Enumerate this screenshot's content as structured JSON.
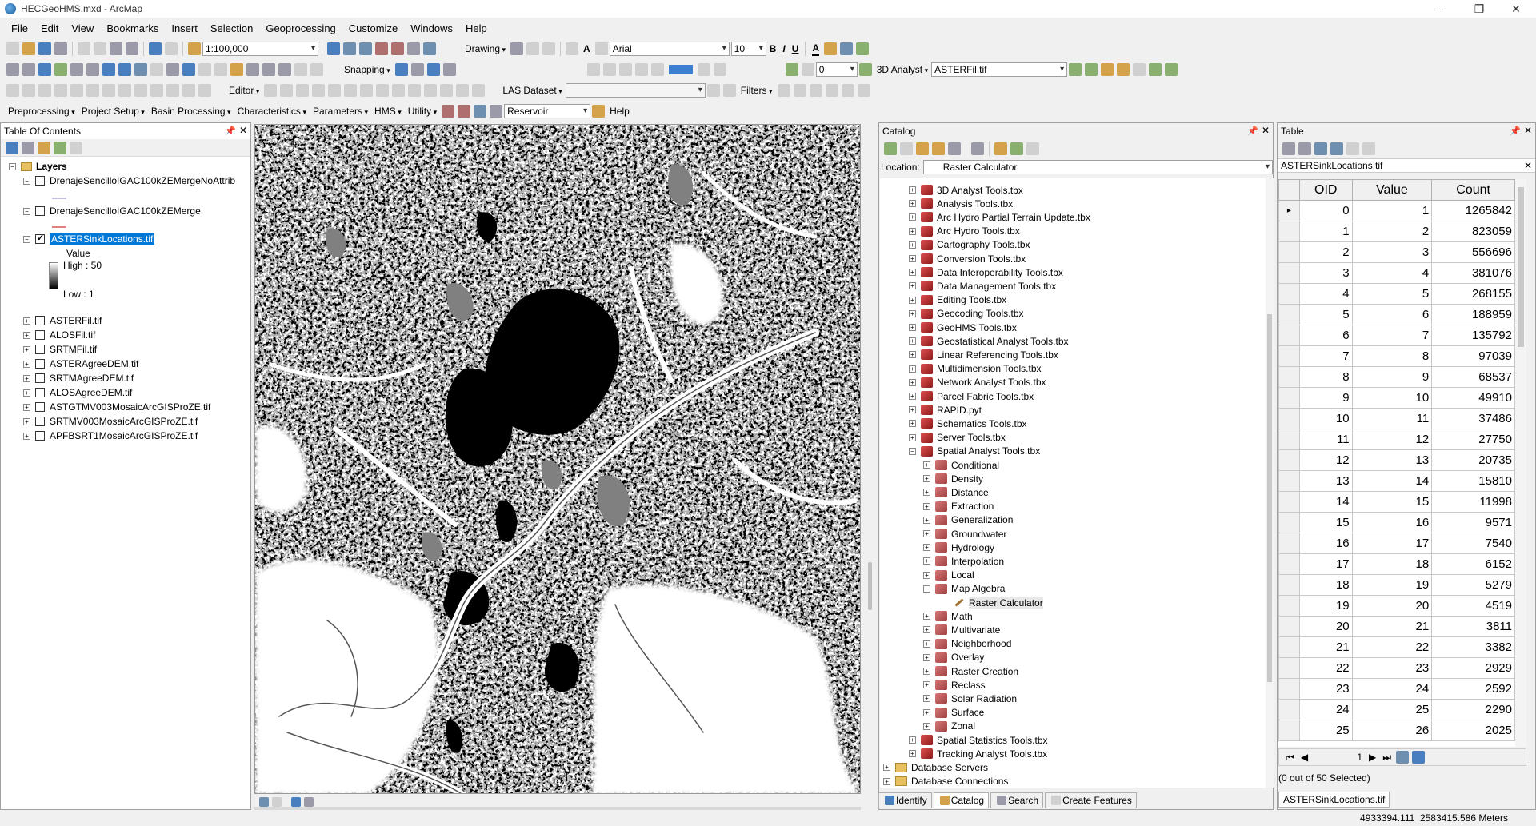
{
  "window": {
    "title": "HECGeoHMS.mxd - ArcMap"
  },
  "menu": [
    "File",
    "Edit",
    "View",
    "Bookmarks",
    "Insert",
    "Selection",
    "Geoprocessing",
    "Customize",
    "Windows",
    "Help"
  ],
  "toolbar": {
    "scale": "1:100,000",
    "drawing": "Drawing",
    "font": "Arial",
    "font_size": "10",
    "bold": "B",
    "italic": "I",
    "underline": "U",
    "snapping": "Snapping",
    "analyst3d": "3D Analyst",
    "layer": "ASTERFil.tif",
    "editor": "Editor",
    "las": "LAS Dataset",
    "filters": "Filters",
    "preprocessing": "Preprocessing",
    "project_setup": "Project Setup",
    "basin_processing": "Basin Processing",
    "characteristics": "Characteristics",
    "parameters": "Parameters",
    "hms": "HMS",
    "utility": "Utility",
    "reservoir": "Reservoir",
    "help": "Help",
    "georef_value": "0"
  },
  "toc": {
    "title": "Table Of Contents",
    "layers_label": "Layers",
    "layer1": "DrenajeSencilloIGAC100kZEMergeNoAttrib",
    "layer2": "DrenajeSencilloIGAC100kZEMerge",
    "layer3": "ASTERSinkLocations.tif",
    "legend_value": "Value",
    "legend_high": "High : 50",
    "legend_low": "Low : 1",
    "rasters": [
      "ASTERFil.tif",
      "ALOSFil.tif",
      "SRTMFil.tif",
      "ASTERAgreeDEM.tif",
      "SRTMAgreeDEM.tif",
      "ALOSAgreeDEM.tif",
      "ASTGTMV003MosaicArcGISProZE.tif",
      "SRTMV003MosaicArcGISProZE.tif",
      "APFBSRT1MosaicArcGISProZE.tif"
    ]
  },
  "catalog": {
    "title": "Catalog",
    "location_label": "Location:",
    "location_value": "Raster Calculator",
    "toolboxes": [
      "3D Analyst Tools.tbx",
      "Analysis Tools.tbx",
      "Arc Hydro Partial Terrain Update.tbx",
      "Arc Hydro Tools.tbx",
      "Cartography Tools.tbx",
      "Conversion Tools.tbx",
      "Data Interoperability Tools.tbx",
      "Data Management Tools.tbx",
      "Editing Tools.tbx",
      "Geocoding Tools.tbx",
      "GeoHMS Tools.tbx",
      "Geostatistical Analyst Tools.tbx",
      "Linear Referencing Tools.tbx",
      "Multidimension Tools.tbx",
      "Network Analyst Tools.tbx",
      "Parcel Fabric Tools.tbx",
      "RAPID.pyt",
      "Schematics Tools.tbx",
      "Server Tools.tbx",
      "Spatial Analyst Tools.tbx"
    ],
    "spatial_sets": [
      "Conditional",
      "Density",
      "Distance",
      "Extraction",
      "Generalization",
      "Groundwater",
      "Hydrology",
      "Interpolation",
      "Local",
      "Map Algebra"
    ],
    "map_algebra_tool": "Raster Calculator",
    "spatial_sets2": [
      "Math",
      "Multivariate",
      "Neighborhood",
      "Overlay",
      "Raster Creation",
      "Reclass",
      "Solar Radiation",
      "Surface",
      "Zonal"
    ],
    "after": [
      "Spatial Statistics Tools.tbx",
      "Tracking Analyst Tools.tbx"
    ],
    "roots": [
      "Database Servers",
      "Database Connections",
      "GIS Servers"
    ],
    "tabs": [
      "Identify",
      "Catalog",
      "Search",
      "Create Features"
    ]
  },
  "table": {
    "title": "Table",
    "table_name": "ASTERSinkLocations.tif",
    "columns": [
      "OID",
      "Value",
      "Count"
    ],
    "rows": [
      [
        "0",
        "1",
        "1265842"
      ],
      [
        "1",
        "2",
        "823059"
      ],
      [
        "2",
        "3",
        "556696"
      ],
      [
        "3",
        "4",
        "381076"
      ],
      [
        "4",
        "5",
        "268155"
      ],
      [
        "5",
        "6",
        "188959"
      ],
      [
        "6",
        "7",
        "135792"
      ],
      [
        "7",
        "8",
        "97039"
      ],
      [
        "8",
        "9",
        "68537"
      ],
      [
        "9",
        "10",
        "49910"
      ],
      [
        "10",
        "11",
        "37486"
      ],
      [
        "11",
        "12",
        "27750"
      ],
      [
        "12",
        "13",
        "20735"
      ],
      [
        "13",
        "14",
        "15810"
      ],
      [
        "14",
        "15",
        "11998"
      ],
      [
        "15",
        "16",
        "9571"
      ],
      [
        "16",
        "17",
        "7540"
      ],
      [
        "17",
        "18",
        "6152"
      ],
      [
        "18",
        "19",
        "5279"
      ],
      [
        "19",
        "20",
        "4519"
      ],
      [
        "20",
        "21",
        "3811"
      ],
      [
        "21",
        "22",
        "3382"
      ],
      [
        "22",
        "23",
        "2929"
      ],
      [
        "23",
        "24",
        "2592"
      ],
      [
        "24",
        "25",
        "2290"
      ],
      [
        "25",
        "26",
        "2025"
      ]
    ],
    "record": "1",
    "selected": "(0 out of 50 Selected)",
    "tab": "ASTERSinkLocations.tif"
  },
  "status": {
    "coords": "4933394.111  2583415.586 Meters"
  }
}
